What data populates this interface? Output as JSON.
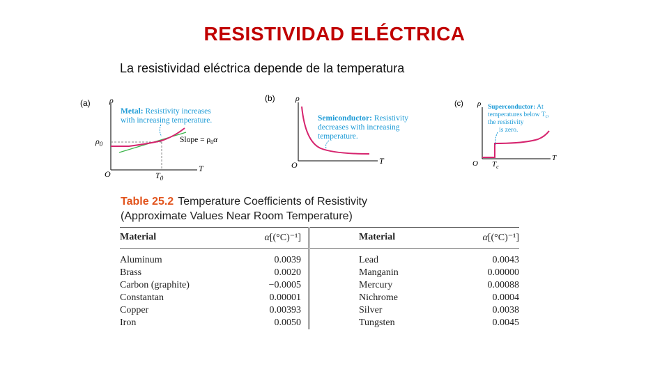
{
  "slide": {
    "title": "RESISTIVIDAD ELÉCTRICA",
    "subtitle": "La resistividad eléctrica depende de la temperatura"
  },
  "graphs": {
    "a": {
      "label": "(a)",
      "y_axis": "ρ",
      "x_axis": "T",
      "origin": "O",
      "rho0": "ρ",
      "rho0_sub": "0",
      "t0": "T",
      "t0_sub": "0",
      "note_bold": "Metal:",
      "note_line1": " Resistivity increases",
      "note_line2": "with increasing temperature.",
      "slope_label": "Slope = ρ",
      "slope_sub": "0",
      "slope_alpha": "α"
    },
    "b": {
      "label": "(b)",
      "y_axis": "ρ",
      "x_axis": "T",
      "origin": "O",
      "note_bold": "Semiconductor:",
      "note_line1": " Resistivity",
      "note_line2": "decreases with increasing",
      "note_line3": "temperature."
    },
    "c": {
      "label": "(c)",
      "y_axis": "ρ",
      "x_axis": "T",
      "origin": "O",
      "tc": "T",
      "tc_sub": "c",
      "note_bold": "Superconductor:",
      "note_line1": " At",
      "note_line2": "temperatures below T",
      "note_line2_sub": "c",
      "note_line2_end": ",",
      "note_line3": "the resistivity",
      "note_line4": "is zero."
    }
  },
  "table": {
    "number": "Table 25.2",
    "caption_line1": "Temperature Coefficients of Resistivity",
    "caption_line2": "(Approximate Values Near Room Temperature)",
    "col_material": "Material",
    "col_alpha_symbol": "α",
    "col_alpha_unit": "[(°C)⁻¹]",
    "left": [
      {
        "material": "Aluminum",
        "alpha": "0.0039"
      },
      {
        "material": "Brass",
        "alpha": "0.0020"
      },
      {
        "material": "Carbon (graphite)",
        "alpha": "−0.0005"
      },
      {
        "material": "Constantan",
        "alpha": "0.00001"
      },
      {
        "material": "Copper",
        "alpha": "0.00393"
      },
      {
        "material": "Iron",
        "alpha": "0.0050"
      }
    ],
    "right": [
      {
        "material": "Lead",
        "alpha": "0.0043"
      },
      {
        "material": "Manganin",
        "alpha": "0.00000"
      },
      {
        "material": "Mercury",
        "alpha": "0.00088"
      },
      {
        "material": "Nichrome",
        "alpha": "0.0004"
      },
      {
        "material": "Silver",
        "alpha": "0.0038"
      },
      {
        "material": "Tungsten",
        "alpha": "0.0045"
      }
    ]
  },
  "colors": {
    "title": "#c00000",
    "curve": "#d6246e",
    "tangent": "#3cb44b",
    "note": "#1b9ad6",
    "table_number": "#e2541d"
  }
}
